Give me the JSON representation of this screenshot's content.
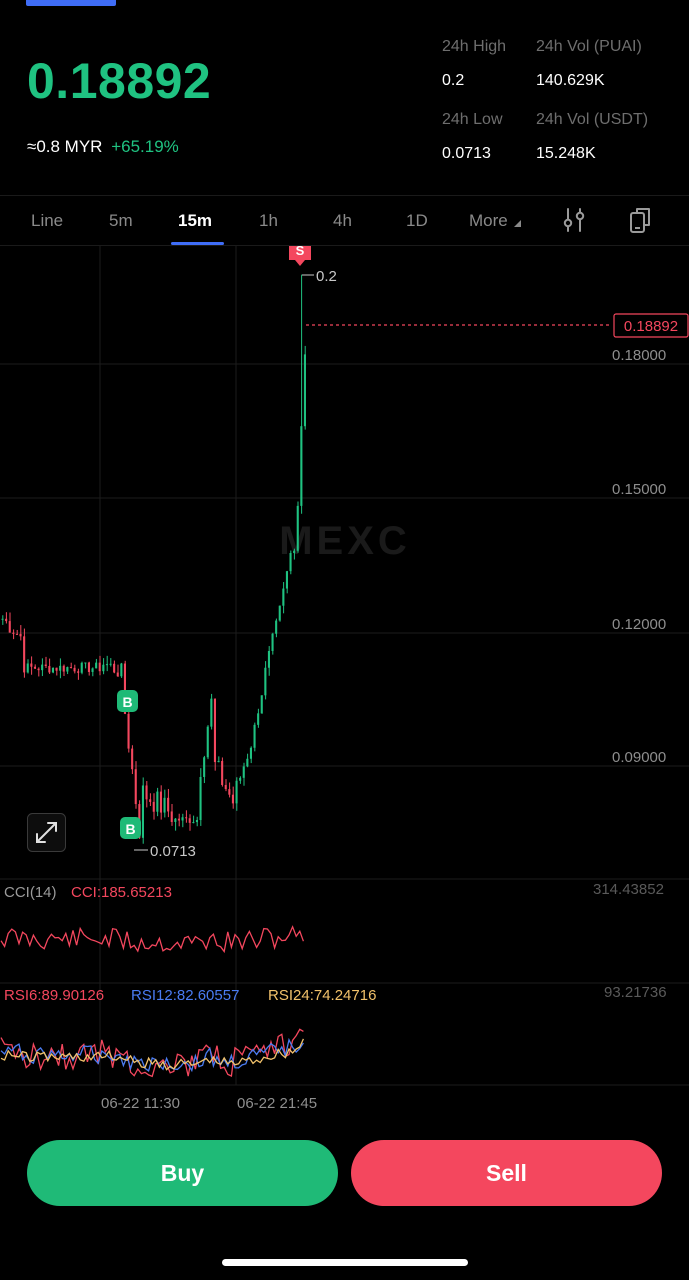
{
  "ticker": {
    "last_price": "0.18892",
    "fiat_equiv": "≈0.8 MYR",
    "change_pct": "+65.19%",
    "high_label": "24h High",
    "high_value": "0.2",
    "vol_base_label": "24h Vol (PUAI)",
    "vol_base_value": "140.629K",
    "low_label": "24h Low",
    "low_value": "0.0713",
    "vol_quote_label": "24h Vol  (USDT)",
    "vol_quote_value": "15.248K"
  },
  "tabs": [
    {
      "label": "Line",
      "active": false
    },
    {
      "label": "5m",
      "active": false
    },
    {
      "label": "15m",
      "active": true
    },
    {
      "label": "1h",
      "active": false
    },
    {
      "label": "4h",
      "active": false
    },
    {
      "label": "1D",
      "active": false
    },
    {
      "label": "More",
      "active": false
    }
  ],
  "tab_icons": [
    "indicator-settings-icon",
    "screen-rotate-icon"
  ],
  "chart": {
    "price_axis": [
      "0.18000",
      "0.15000",
      "0.12000",
      "0.09000"
    ],
    "current_price_tag": "0.18892",
    "high_marker": "0.2",
    "low_marker": "0.0713",
    "sell_marker": "S",
    "buy_marker": "B",
    "watermark": "MEXC",
    "cci_label": "CCI(14)",
    "cci_value": "CCI:185.65213",
    "cci_axis": "314.43852",
    "rsi6": "RSI6:89.90126",
    "rsi12": "RSI12:82.60557",
    "rsi24": "RSI24:74.24716",
    "rsi_axis": "93.21736",
    "time_labels": [
      "06-22 11:30",
      "06-22 21:45"
    ]
  },
  "colors": {
    "up": "#1fc281",
    "down": "#f4475e",
    "accent": "#3f6df6",
    "rsi6": "#f4475e",
    "rsi12": "#4a7cf2",
    "rsi24": "#f2c26b"
  },
  "actions": {
    "buy_label": "Buy",
    "sell_label": "Sell"
  }
}
